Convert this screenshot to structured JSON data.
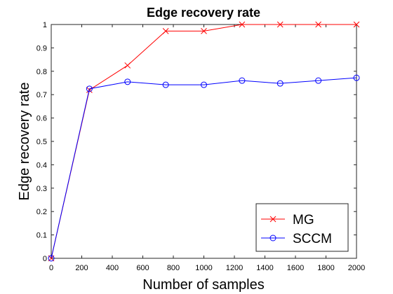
{
  "chart_data": {
    "type": "line",
    "title": "Edge recovery rate",
    "xlabel": "Number of samples",
    "ylabel": "Edge recovery rate",
    "xlim": [
      0,
      2000
    ],
    "ylim": [
      0,
      1
    ],
    "xticks": [
      0,
      200,
      400,
      600,
      800,
      1000,
      1200,
      1400,
      1600,
      1800,
      2000
    ],
    "yticks": [
      0,
      0.1,
      0.2,
      0.3,
      0.4,
      0.5,
      0.6,
      0.7,
      0.8,
      0.9,
      1
    ],
    "x": [
      0,
      250,
      500,
      750,
      1000,
      1250,
      1500,
      1750,
      2000
    ],
    "series": [
      {
        "name": "MG",
        "color": "#ff0000",
        "marker": "x",
        "values": [
          0,
          0.72,
          0.825,
          0.972,
          0.972,
          1.0,
          1.0,
          1.0,
          1.0
        ]
      },
      {
        "name": "SCCM",
        "color": "#0000ff",
        "marker": "o",
        "values": [
          0,
          0.725,
          0.755,
          0.742,
          0.742,
          0.76,
          0.748,
          0.76,
          0.772
        ]
      }
    ],
    "grid": false,
    "legend": "bottom-right"
  }
}
